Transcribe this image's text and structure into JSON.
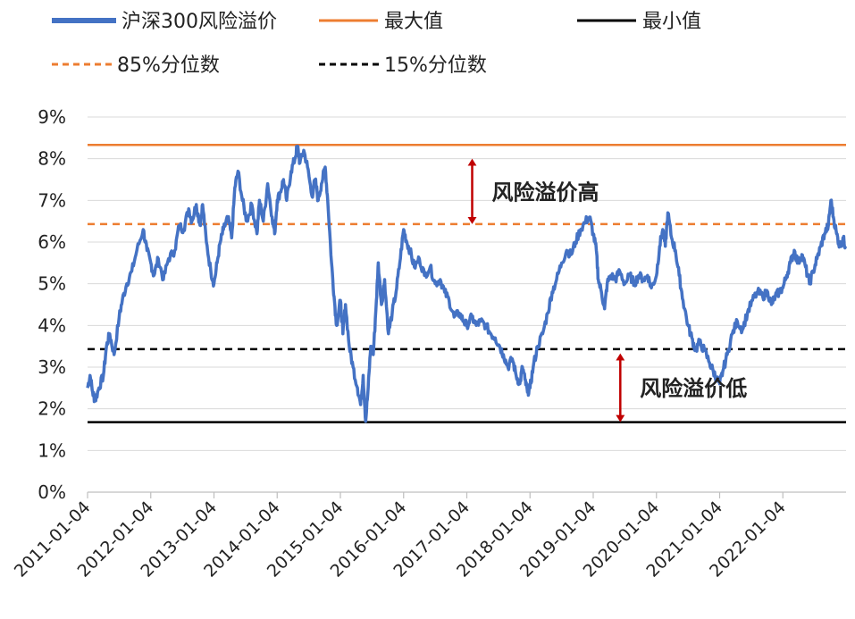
{
  "chart_data": {
    "type": "line",
    "title": "",
    "xlabel": "",
    "ylabel": "",
    "ylim": [
      0,
      9
    ],
    "y_ticks": [
      "0%",
      "1%",
      "2%",
      "3%",
      "4%",
      "5%",
      "6%",
      "7%",
      "8%",
      "9%"
    ],
    "x_ticks": [
      "2011-01-04",
      "2012-01-04",
      "2013-01-04",
      "2014-01-04",
      "2015-01-04",
      "2016-01-04",
      "2017-01-04",
      "2018-01-04",
      "2019-01-04",
      "2020-01-04",
      "2021-01-04",
      "2022-01-04"
    ],
    "grid": "horizontal",
    "legend_position": "top",
    "colors": {
      "series": "#4472C4",
      "max": "#ED7D31",
      "min": "#000000",
      "p85": "#ED7D31",
      "p15": "#000000",
      "arrow": "#C00000"
    },
    "series": [
      {
        "name": "沪深300风险溢价",
        "points": [
          [
            2011.0,
            2.5
          ],
          [
            2011.04,
            2.8
          ],
          [
            2011.08,
            2.4
          ],
          [
            2011.12,
            2.2
          ],
          [
            2011.18,
            2.5
          ],
          [
            2011.25,
            2.8
          ],
          [
            2011.3,
            3.5
          ],
          [
            2011.35,
            3.8
          ],
          [
            2011.42,
            3.3
          ],
          [
            2011.5,
            4.2
          ],
          [
            2011.55,
            4.6
          ],
          [
            2011.62,
            5.0
          ],
          [
            2011.7,
            5.3
          ],
          [
            2011.78,
            5.8
          ],
          [
            2011.88,
            6.3
          ],
          [
            2011.94,
            5.8
          ],
          [
            2012.0,
            5.5
          ],
          [
            2012.05,
            5.2
          ],
          [
            2012.12,
            5.6
          ],
          [
            2012.2,
            5.1
          ],
          [
            2012.28,
            5.6
          ],
          [
            2012.38,
            5.8
          ],
          [
            2012.45,
            6.4
          ],
          [
            2012.52,
            6.3
          ],
          [
            2012.6,
            6.8
          ],
          [
            2012.65,
            6.5
          ],
          [
            2012.72,
            6.9
          ],
          [
            2012.78,
            6.4
          ],
          [
            2012.82,
            6.9
          ],
          [
            2012.88,
            6.0
          ],
          [
            2012.95,
            5.3
          ],
          [
            2013.0,
            5.0
          ],
          [
            2013.05,
            5.5
          ],
          [
            2013.1,
            6.0
          ],
          [
            2013.15,
            6.3
          ],
          [
            2013.22,
            6.6
          ],
          [
            2013.28,
            6.1
          ],
          [
            2013.33,
            7.3
          ],
          [
            2013.38,
            7.7
          ],
          [
            2013.45,
            7.0
          ],
          [
            2013.52,
            6.5
          ],
          [
            2013.6,
            6.9
          ],
          [
            2013.68,
            6.2
          ],
          [
            2013.72,
            7.0
          ],
          [
            2013.78,
            6.5
          ],
          [
            2013.85,
            7.4
          ],
          [
            2013.92,
            6.6
          ],
          [
            2013.96,
            6.2
          ],
          [
            2014.0,
            7.0
          ],
          [
            2014.05,
            7.2
          ],
          [
            2014.1,
            7.5
          ],
          [
            2014.15,
            7.0
          ],
          [
            2014.22,
            7.7
          ],
          [
            2014.28,
            8.0
          ],
          [
            2014.32,
            8.3
          ],
          [
            2014.36,
            7.9
          ],
          [
            2014.42,
            8.2
          ],
          [
            2014.48,
            7.8
          ],
          [
            2014.55,
            7.1
          ],
          [
            2014.6,
            7.5
          ],
          [
            2014.65,
            7.0
          ],
          [
            2014.7,
            7.4
          ],
          [
            2014.76,
            7.8
          ],
          [
            2014.8,
            7.0
          ],
          [
            2014.86,
            5.5
          ],
          [
            2014.9,
            4.7
          ],
          [
            2014.94,
            4.0
          ],
          [
            2015.0,
            4.6
          ],
          [
            2015.04,
            3.8
          ],
          [
            2015.08,
            4.5
          ],
          [
            2015.14,
            3.5
          ],
          [
            2015.2,
            3.0
          ],
          [
            2015.27,
            2.5
          ],
          [
            2015.32,
            2.1
          ],
          [
            2015.36,
            2.8
          ],
          [
            2015.4,
            1.7
          ],
          [
            2015.44,
            2.5
          ],
          [
            2015.48,
            3.5
          ],
          [
            2015.52,
            3.3
          ],
          [
            2015.57,
            4.6
          ],
          [
            2015.6,
            5.5
          ],
          [
            2015.65,
            4.5
          ],
          [
            2015.7,
            5.1
          ],
          [
            2015.76,
            3.8
          ],
          [
            2015.82,
            4.3
          ],
          [
            2015.88,
            4.8
          ],
          [
            2015.94,
            5.5
          ],
          [
            2016.0,
            6.3
          ],
          [
            2016.05,
            6.0
          ],
          [
            2016.1,
            5.8
          ],
          [
            2016.17,
            5.4
          ],
          [
            2016.25,
            5.6
          ],
          [
            2016.33,
            5.2
          ],
          [
            2016.42,
            5.4
          ],
          [
            2016.5,
            5.0
          ],
          [
            2016.58,
            5.1
          ],
          [
            2016.65,
            4.8
          ],
          [
            2016.72,
            4.6
          ],
          [
            2016.8,
            4.2
          ],
          [
            2016.88,
            4.3
          ],
          [
            2016.95,
            4.1
          ],
          [
            2017.0,
            4.0
          ],
          [
            2017.08,
            4.2
          ],
          [
            2017.15,
            4.0
          ],
          [
            2017.22,
            4.1
          ],
          [
            2017.3,
            4.0
          ],
          [
            2017.38,
            3.8
          ],
          [
            2017.45,
            3.7
          ],
          [
            2017.52,
            3.5
          ],
          [
            2017.58,
            3.3
          ],
          [
            2017.65,
            3.0
          ],
          [
            2017.72,
            3.2
          ],
          [
            2017.78,
            2.8
          ],
          [
            2017.84,
            2.6
          ],
          [
            2017.88,
            3.0
          ],
          [
            2017.92,
            2.7
          ],
          [
            2017.96,
            2.4
          ],
          [
            2018.0,
            2.5
          ],
          [
            2018.05,
            3.0
          ],
          [
            2018.12,
            3.5
          ],
          [
            2018.2,
            3.8
          ],
          [
            2018.28,
            4.3
          ],
          [
            2018.35,
            4.8
          ],
          [
            2018.42,
            5.1
          ],
          [
            2018.5,
            5.5
          ],
          [
            2018.58,
            5.8
          ],
          [
            2018.65,
            5.7
          ],
          [
            2018.72,
            6.0
          ],
          [
            2018.8,
            6.3
          ],
          [
            2018.88,
            6.5
          ],
          [
            2018.94,
            6.6
          ],
          [
            2019.0,
            6.2
          ],
          [
            2019.05,
            5.8
          ],
          [
            2019.08,
            5.1
          ],
          [
            2019.13,
            4.8
          ],
          [
            2019.18,
            4.4
          ],
          [
            2019.22,
            5.0
          ],
          [
            2019.28,
            5.2
          ],
          [
            2019.35,
            5.1
          ],
          [
            2019.42,
            5.3
          ],
          [
            2019.5,
            5.0
          ],
          [
            2019.58,
            5.2
          ],
          [
            2019.65,
            5.0
          ],
          [
            2019.72,
            5.2
          ],
          [
            2019.8,
            5.1
          ],
          [
            2019.86,
            5.2
          ],
          [
            2019.92,
            4.9
          ],
          [
            2020.0,
            5.2
          ],
          [
            2020.05,
            5.9
          ],
          [
            2020.1,
            6.3
          ],
          [
            2020.14,
            5.9
          ],
          [
            2020.18,
            6.7
          ],
          [
            2020.24,
            6.1
          ],
          [
            2020.3,
            5.8
          ],
          [
            2020.36,
            5.2
          ],
          [
            2020.42,
            4.6
          ],
          [
            2020.5,
            4.0
          ],
          [
            2020.56,
            3.7
          ],
          [
            2020.62,
            3.4
          ],
          [
            2020.68,
            3.6
          ],
          [
            2020.76,
            3.4
          ],
          [
            2020.84,
            3.1
          ],
          [
            2020.9,
            2.9
          ],
          [
            2020.96,
            2.7
          ],
          [
            2021.0,
            2.6
          ],
          [
            2021.05,
            2.9
          ],
          [
            2021.12,
            3.3
          ],
          [
            2021.2,
            3.8
          ],
          [
            2021.28,
            4.1
          ],
          [
            2021.36,
            3.9
          ],
          [
            2021.44,
            4.3
          ],
          [
            2021.52,
            4.6
          ],
          [
            2021.6,
            4.8
          ],
          [
            2021.68,
            4.7
          ],
          [
            2021.76,
            4.8
          ],
          [
            2021.82,
            4.5
          ],
          [
            2021.88,
            4.7
          ],
          [
            2021.94,
            4.8
          ],
          [
            2022.0,
            4.9
          ],
          [
            2022.06,
            5.2
          ],
          [
            2022.12,
            5.5
          ],
          [
            2022.18,
            5.8
          ],
          [
            2022.24,
            5.5
          ],
          [
            2022.3,
            5.7
          ],
          [
            2022.36,
            5.4
          ],
          [
            2022.42,
            5.0
          ],
          [
            2022.48,
            5.3
          ],
          [
            2022.54,
            5.6
          ],
          [
            2022.6,
            5.9
          ],
          [
            2022.66,
            6.2
          ],
          [
            2022.72,
            6.4
          ],
          [
            2022.76,
            7.0
          ],
          [
            2022.8,
            6.6
          ],
          [
            2022.85,
            6.2
          ],
          [
            2022.9,
            5.9
          ],
          [
            2022.95,
            6.1
          ],
          [
            2022.99,
            5.9
          ]
        ]
      },
      {
        "name": "最大值",
        "value": 8.33
      },
      {
        "name": "最小值",
        "value": 1.68
      },
      {
        "name": "85%分位数",
        "value": 6.43
      },
      {
        "name": "15%分位数",
        "value": 3.43
      }
    ],
    "annotations": [
      {
        "text": "风险溢价高",
        "arrow_from": 6.43,
        "arrow_to": 8.0,
        "at_x": 2017.0
      },
      {
        "text": "风险溢价低",
        "arrow_from": 1.68,
        "arrow_to": 3.33,
        "at_x": 2019.4
      }
    ]
  }
}
